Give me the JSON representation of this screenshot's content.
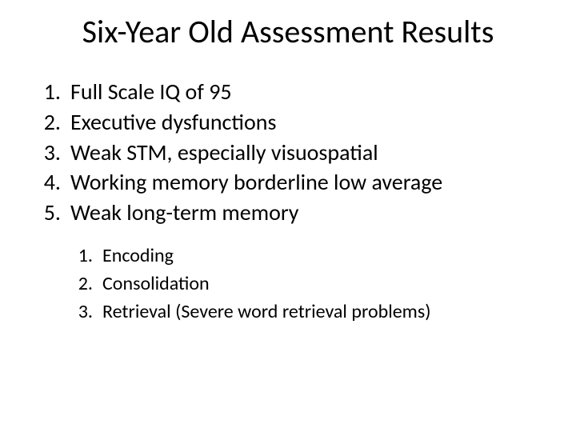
{
  "title": "Six-Year Old Assessment Results",
  "colors": {
    "background": "#ffffff",
    "text": "#000000"
  },
  "typography": {
    "title_fontsize": 40,
    "main_item_fontsize": 28,
    "sub_item_fontsize": 24,
    "font_family": "Calibri"
  },
  "main_items": [
    {
      "n": "1.",
      "text": "Full Scale IQ of 95"
    },
    {
      "n": "2.",
      "text": "Executive dysfunctions"
    },
    {
      "n": "3.",
      "text": "Weak STM, especially visuospatial"
    },
    {
      "n": "4.",
      "text": "Working memory borderline low average"
    },
    {
      "n": "5.",
      "text": "Weak long-term memory"
    }
  ],
  "sub_items": [
    {
      "n": "1.",
      "text": "Encoding"
    },
    {
      "n": "2.",
      "text": "Consolidation"
    },
    {
      "n": "3.",
      "text": "Retrieval (Severe word retrieval problems)"
    }
  ]
}
